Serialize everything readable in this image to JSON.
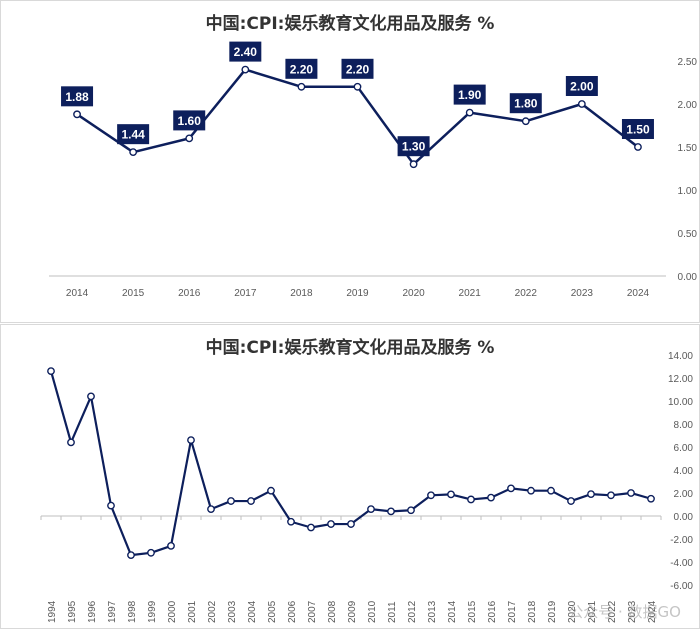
{
  "chart_data": [
    {
      "type": "line",
      "title": "中国:CPI:娱乐教育文化用品及服务 %",
      "x": [
        "2014",
        "2015",
        "2016",
        "2017",
        "2018",
        "2019",
        "2020",
        "2021",
        "2022",
        "2023",
        "2024"
      ],
      "series": [
        {
          "values": [
            1.88,
            1.44,
            1.6,
            2.4,
            2.2,
            2.2,
            1.3,
            1.9,
            1.8,
            2.0,
            1.5
          ]
        }
      ],
      "data_labels": [
        "1.88",
        "1.44",
        "1.60",
        "2.40",
        "2.20",
        "2.20",
        "1.30",
        "1.90",
        "1.80",
        "2.00",
        "1.50"
      ],
      "ylim": [
        0,
        2.5
      ],
      "yticks": [
        "0.00",
        "0.50",
        "1.00",
        "1.50",
        "2.00",
        "2.50"
      ],
      "y_axis_side": "right",
      "grid": false,
      "legend": "none",
      "colors": {
        "line": "#0d1f5c",
        "label_bg": "#0d1f5c"
      }
    },
    {
      "type": "line",
      "title": "中国:CPI:娱乐教育文化用品及服务 %",
      "x": [
        "1994",
        "1995",
        "1996",
        "1997",
        "1998",
        "1999",
        "2000",
        "2001",
        "2002",
        "2003",
        "2004",
        "2005",
        "2006",
        "2007",
        "2008",
        "2009",
        "2010",
        "2011",
        "2012",
        "2013",
        "2014",
        "2015",
        "2016",
        "2017",
        "2018",
        "2019",
        "2020",
        "2021",
        "2022",
        "2023",
        "2024"
      ],
      "series": [
        {
          "values": [
            12.6,
            6.4,
            10.4,
            0.9,
            -3.4,
            -3.2,
            -2.6,
            6.6,
            0.6,
            1.3,
            1.3,
            2.2,
            -0.5,
            -1.0,
            -0.7,
            -0.7,
            0.6,
            0.4,
            0.5,
            1.8,
            1.88,
            1.44,
            1.6,
            2.4,
            2.2,
            2.2,
            1.3,
            1.9,
            1.8,
            2.0,
            1.5
          ]
        }
      ],
      "ylim": [
        -6,
        14
      ],
      "yticks": [
        "-6.00",
        "-4.00",
        "-2.00",
        "0.00",
        "2.00",
        "4.00",
        "6.00",
        "8.00",
        "10.00",
        "12.00",
        "14.00"
      ],
      "y_axis_side": "right",
      "grid": false,
      "legend": "none",
      "colors": {
        "line": "#0d1f5c"
      }
    }
  ],
  "watermark": "公众号 · 数据GO"
}
